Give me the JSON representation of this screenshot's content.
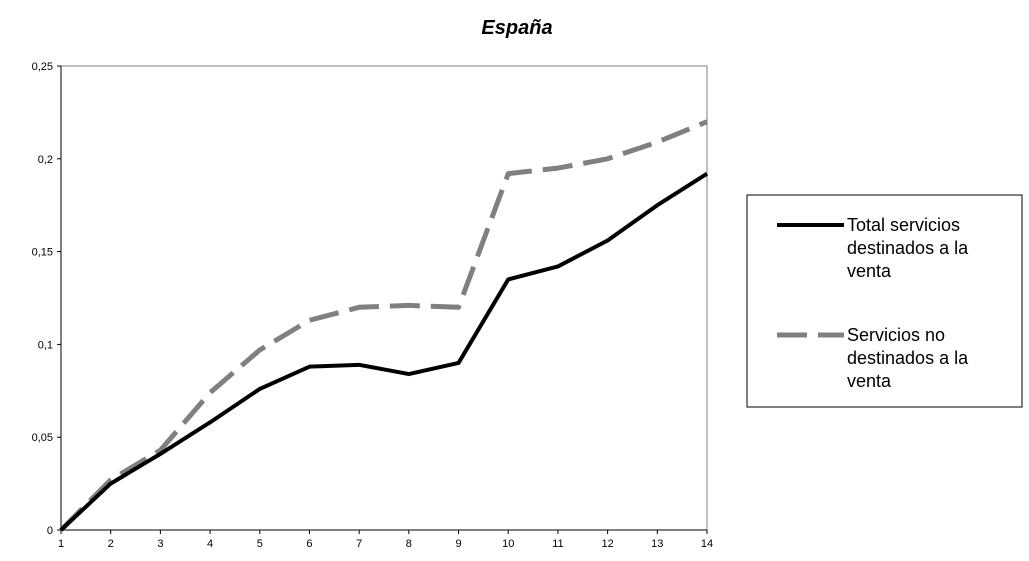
{
  "chart_data": {
    "type": "line",
    "title": "España",
    "xlabel": "",
    "ylabel": "",
    "x": [
      1,
      2,
      3,
      4,
      5,
      6,
      7,
      8,
      9,
      10,
      11,
      12,
      13,
      14
    ],
    "x_tick_labels": [
      "1",
      "2",
      "3",
      "4",
      "5",
      "6",
      "7",
      "8",
      "9",
      "10",
      "11",
      "12",
      "13",
      "14"
    ],
    "ylim": [
      0,
      0.25
    ],
    "y_ticks": [
      0,
      0.05,
      0.1,
      0.15,
      0.2,
      0.25
    ],
    "y_tick_labels": [
      "0",
      "0,05",
      "0,1",
      "0,15",
      "0,2",
      "0,25"
    ],
    "grid": false,
    "legend_position": "right",
    "series": [
      {
        "name": "Total servicios destinados a la venta",
        "legend_lines": [
          "Total servicios",
          "destinados a la",
          "venta"
        ],
        "style": "solid",
        "color": "#000000",
        "values": [
          0,
          0.025,
          0.041,
          0.058,
          0.076,
          0.088,
          0.089,
          0.084,
          0.09,
          0.135,
          0.142,
          0.156,
          0.175,
          0.192
        ]
      },
      {
        "name": "Servicios no destinados a la venta",
        "legend_lines": [
          "Servicios no",
          "destinados a la",
          "venta"
        ],
        "style": "dashed",
        "color": "#808080",
        "values": [
          0,
          0.027,
          0.043,
          0.074,
          0.097,
          0.113,
          0.12,
          0.121,
          0.12,
          0.192,
          0.195,
          0.2,
          0.209,
          0.22
        ]
      }
    ]
  }
}
